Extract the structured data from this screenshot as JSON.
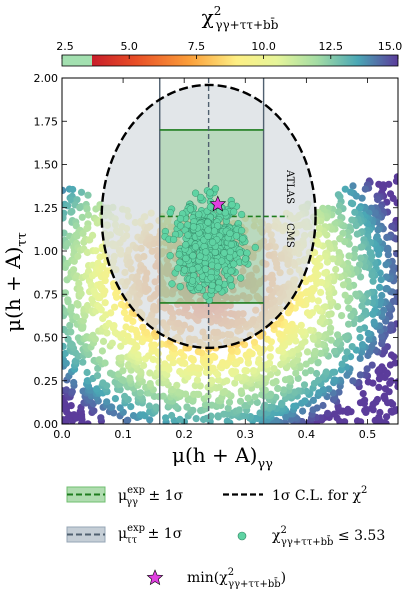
{
  "colorbar": {
    "title": "χ²γγ+ττ+bb̄",
    "title_main": "χ",
    "title_sup": "2",
    "title_sub": "γγ+ττ+bb̄",
    "ticks": [
      "2.5",
      "5.0",
      "7.5",
      "10.0",
      "12.5",
      "15.0"
    ],
    "range": [
      2.5,
      15.0
    ],
    "threshold": 3.53
  },
  "axes": {
    "xlabel": "μ(h + A)γγ",
    "xlabel_main": "μ(h + A)",
    "xlabel_sub": "γγ",
    "ylabel": "μ(h + A)ττ",
    "ylabel_main": "μ(h + A)",
    "ylabel_sub": "ττ",
    "xticks": [
      "0.0",
      "0.1",
      "0.2",
      "0.3",
      "0.4",
      "0.5"
    ],
    "yticks": [
      "0.00",
      "0.25",
      "0.50",
      "0.75",
      "1.00",
      "1.25",
      "1.50",
      "1.75",
      "2.00"
    ]
  },
  "annotations": {
    "atlas": "ATLAS",
    "cms": "CMS"
  },
  "legend": {
    "gg_band": "μexpγγ ± 1σ",
    "gg_main": "μ",
    "gg_sup": "exp",
    "gg_sub": "γγ",
    "gg_tail": " ± 1σ",
    "tt_band": "μexpττ ± 1σ",
    "tt_main": "μ",
    "tt_sup": "exp",
    "tt_sub": "ττ",
    "tt_tail": " ± 1σ",
    "ellipse": "1σ C.L. for χ²",
    "ellipse_main": "1σ C.L. for χ",
    "ellipse_sup": "2",
    "points": "χ²γγ+ττ+bb̄ ≤ 3.53",
    "points_main": "χ",
    "points_sup": "2",
    "points_sub": "γγ+ττ+bb̄",
    "points_tail": " ≤ 3.53",
    "min": "min(χ²γγ+ττ+bb̄)",
    "min_main": "min(χ",
    "min_sup": "2",
    "min_sub": "γγ+ττ+bb̄",
    "min_tail": ")"
  },
  "colors": {
    "gg_band": "#6fbf6f",
    "gg_line": "#1e7d1e",
    "tt_band": "#95a5b5",
    "tt_line": "#506070",
    "ellipse": "#000000",
    "good_points": "#5fd3a3",
    "min_star": "#e040e0"
  },
  "chart_data": {
    "type": "scatter",
    "title": "",
    "xlabel": "μ(h + A)γγ",
    "ylabel": "μ(h + A)ττ",
    "xlim": [
      0.0,
      0.55
    ],
    "ylim": [
      0.0,
      2.0
    ],
    "color_variable": "χ²γγ+ττ+bb̄",
    "color_range": [
      2.5,
      15.0
    ],
    "grid": false,
    "bands": {
      "gamma_gamma": {
        "center": 0.24,
        "low": 0.16,
        "high": 0.33
      },
      "tau_tau_atlas": {
        "center": 1.2,
        "low": 0.7,
        "high": 1.7
      },
      "tau_tau_cms": {
        "center": 1.2,
        "low": 0.7,
        "high": 1.7
      }
    },
    "ellipse_1sigma": {
      "center": [
        0.24,
        1.2
      ],
      "semi_x": 0.175,
      "semi_y": 0.76
    },
    "min_point": {
      "x": 0.255,
      "y": 1.27
    },
    "good_points_region": {
      "x_center": 0.24,
      "y_center": 1.03,
      "x_spread": 0.035,
      "y_spread": 0.16,
      "chi2_max": 3.53
    }
  }
}
